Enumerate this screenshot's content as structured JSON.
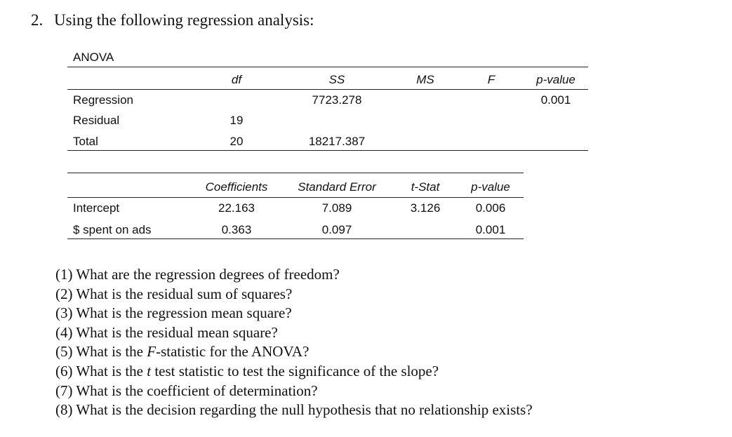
{
  "problem": {
    "number": "2.",
    "text": "Using the following regression analysis:"
  },
  "anova": {
    "label": "ANOVA",
    "headers": [
      "df",
      "SS",
      "MS",
      "F",
      "p-value"
    ],
    "rows": [
      {
        "name": "Regression",
        "df": "",
        "ss": "7723.278",
        "ms": "",
        "f": "",
        "p": "0.001"
      },
      {
        "name": "Residual",
        "df": "19",
        "ss": "",
        "ms": "",
        "f": "",
        "p": ""
      },
      {
        "name": "Total",
        "df": "20",
        "ss": "18217.387",
        "ms": "",
        "f": "",
        "p": ""
      }
    ]
  },
  "coefficients": {
    "headers": [
      "Coefficients",
      "Standard Error",
      "t-Stat",
      "p-value"
    ],
    "rows": [
      {
        "name": "Intercept",
        "coef": "22.163",
        "se": "7.089",
        "t": "3.126",
        "p": "0.006"
      },
      {
        "name": "$ spent on ads",
        "coef": "0.363",
        "se": "0.097",
        "t": "",
        "p": "0.001"
      }
    ]
  },
  "questions": [
    {
      "pre": "(1) What are the regression degrees of freedom?",
      "ital": "",
      "post": ""
    },
    {
      "pre": "(2) What is the residual sum of squares?",
      "ital": "",
      "post": ""
    },
    {
      "pre": "(3) What is the regression mean square?",
      "ital": "",
      "post": ""
    },
    {
      "pre": "(4) What is the residual mean square?",
      "ital": "",
      "post": ""
    },
    {
      "pre": "(5) What is the ",
      "ital": "F",
      "post": "-statistic for the ANOVA?"
    },
    {
      "pre": "(6) What is the ",
      "ital": "t",
      "post": " test statistic to test the significance of the slope?"
    },
    {
      "pre": "(7) What is the coefficient of determination?",
      "ital": "",
      "post": ""
    },
    {
      "pre": "(8) What is the decision regarding the null hypothesis that no relationship exists?",
      "ital": "",
      "post": ""
    }
  ]
}
